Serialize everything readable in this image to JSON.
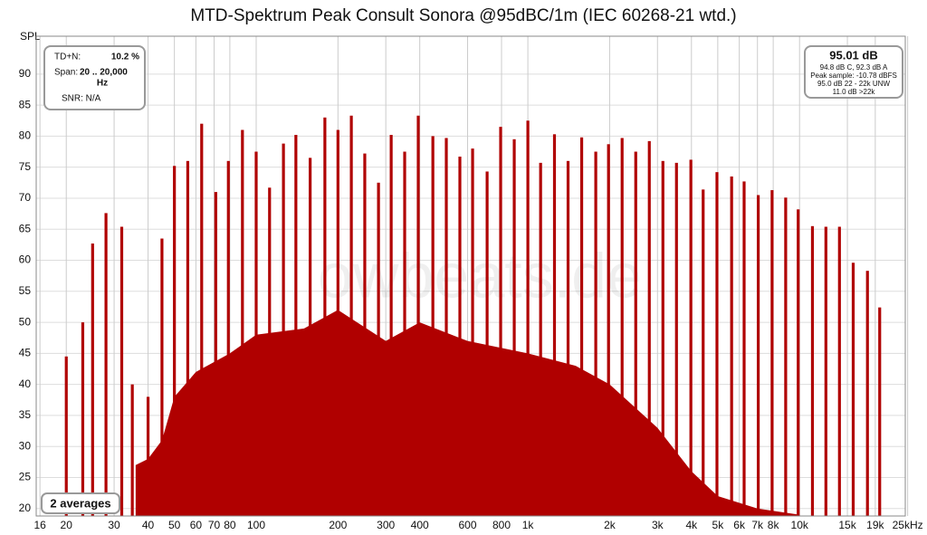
{
  "chart_data": {
    "type": "bar",
    "title": "MTD-Spektrum Peak Consult Sonora @95dBC/1m (IEC 60268-21 wtd.)",
    "ylabel": "SPL",
    "log_x": true,
    "grid": true,
    "xlim": [
      15.5,
      24500
    ],
    "ylim": [
      18.8,
      96.1
    ],
    "yticks": [
      20,
      25,
      30,
      35,
      40,
      45,
      50,
      55,
      60,
      65,
      70,
      75,
      80,
      85,
      90
    ],
    "xticks": [
      16,
      20,
      30,
      40,
      50,
      60,
      70,
      80,
      100,
      200,
      300,
      400,
      600,
      800,
      {
        "value": 1000,
        "label": "1k"
      },
      {
        "value": 2000,
        "label": "2k"
      },
      {
        "value": 3000,
        "label": "3k"
      },
      {
        "value": 4000,
        "label": "4k"
      },
      {
        "value": 5000,
        "label": "5k"
      },
      {
        "value": 6000,
        "label": "6k"
      },
      {
        "value": 7000,
        "label": "7k"
      },
      {
        "value": 8000,
        "label": "8k"
      },
      {
        "value": 10000,
        "label": "10k"
      },
      {
        "value": 15000,
        "label": "15k"
      },
      {
        "value": 19000,
        "label": "19k"
      },
      {
        "value": 25000,
        "label": "25kHz"
      }
    ],
    "series": [
      {
        "type": "area",
        "color": "#b00000",
        "x": [
          36,
          40,
          45,
          50,
          60,
          80,
          100,
          150,
          200,
          300,
          400,
          600,
          1000,
          1500,
          2000,
          3000,
          4000,
          5000,
          7000,
          10000
        ],
        "values": [
          27,
          28,
          31,
          38,
          42,
          45,
          48,
          49,
          52,
          47,
          50,
          47,
          45,
          43,
          40,
          33,
          26,
          22,
          20,
          19
        ]
      },
      {
        "type": "bar",
        "color": "#b00000",
        "x": [
          20,
          23,
          25,
          28,
          32,
          35,
          40,
          45,
          50,
          56,
          63,
          71,
          79,
          89,
          100,
          112,
          126,
          140,
          158,
          179,
          200,
          224,
          251,
          282,
          314,
          352,
          395,
          447,
          501,
          562,
          626,
          708,
          794,
          891,
          1000,
          1114,
          1253,
          1406,
          1578,
          1778,
          1981,
          2223,
          2495,
          2799,
          3141,
          3524,
          3981,
          4418,
          4966,
          5623,
          6252,
          7047,
          7924,
          8891,
          9886,
          11156,
          12503,
          14026,
          15758,
          17783,
          19724
        ],
        "values": [
          44.5,
          50,
          62.7,
          67.6,
          65.4,
          40,
          38,
          63.5,
          75.2,
          76,
          82,
          71,
          76,
          81,
          77.5,
          71.7,
          78.8,
          80.2,
          76.5,
          83,
          81,
          83.3,
          77.2,
          72.5,
          80.2,
          77.5,
          83.3,
          80,
          79.7,
          76.7,
          78,
          74.3,
          81.5,
          79.5,
          82.5,
          75.7,
          80.3,
          76,
          79.8,
          77.5,
          78.7,
          79.7,
          77.5,
          79.2,
          76,
          75.7,
          76.2,
          71.4,
          74.2,
          73.5,
          72.7,
          70.5,
          71.3,
          70.1,
          68.2,
          65.5,
          65.4,
          65.4,
          59.6,
          58.3,
          52.4
        ]
      }
    ],
    "watermark": "owbeats.de",
    "info_left": {
      "tdn_label": "TD+N:",
      "tdn_value": "10.2 %",
      "span_label": "Span:",
      "span_value": "20 .. 20,000",
      "span_unit": "Hz",
      "snr": "SNR:  N/A"
    },
    "info_right": {
      "level": "95.01 dB",
      "lines": [
        "94.8 dB C, 92.3 dB A",
        "Peak sample: -10.78 dBFS",
        "95.0 dB 22 - 22k UNW",
        "11.0 dB >22k"
      ]
    },
    "averages": "2 averages"
  }
}
